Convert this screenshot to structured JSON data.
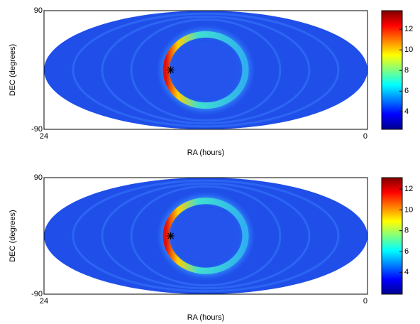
{
  "chart_data": [
    {
      "type": "skymap",
      "xlabel": "RA (hours)",
      "ylabel": "DEC (degrees)",
      "xlim": [
        24,
        0
      ],
      "xticks": [
        24,
        0
      ],
      "ylim": [
        -90,
        90
      ],
      "yticks": [
        90,
        -90
      ],
      "marker": {
        "x": 14.6,
        "y": 0
      },
      "clim": [
        2.3,
        13.8
      ],
      "cticks": [
        4,
        6,
        8,
        10,
        12
      ]
    },
    {
      "type": "skymap",
      "xlabel": "RA (hours)",
      "ylabel": "DEC (degrees)",
      "xlim": [
        24,
        0
      ],
      "xticks": [
        24,
        0
      ],
      "ylim": [
        -90,
        90
      ],
      "yticks": [
        90,
        -90
      ],
      "marker": {
        "x": 14.6,
        "y": 0
      },
      "clim": [
        1.9,
        13.1
      ],
      "cticks": [
        4,
        6,
        8,
        10,
        12
      ]
    }
  ]
}
